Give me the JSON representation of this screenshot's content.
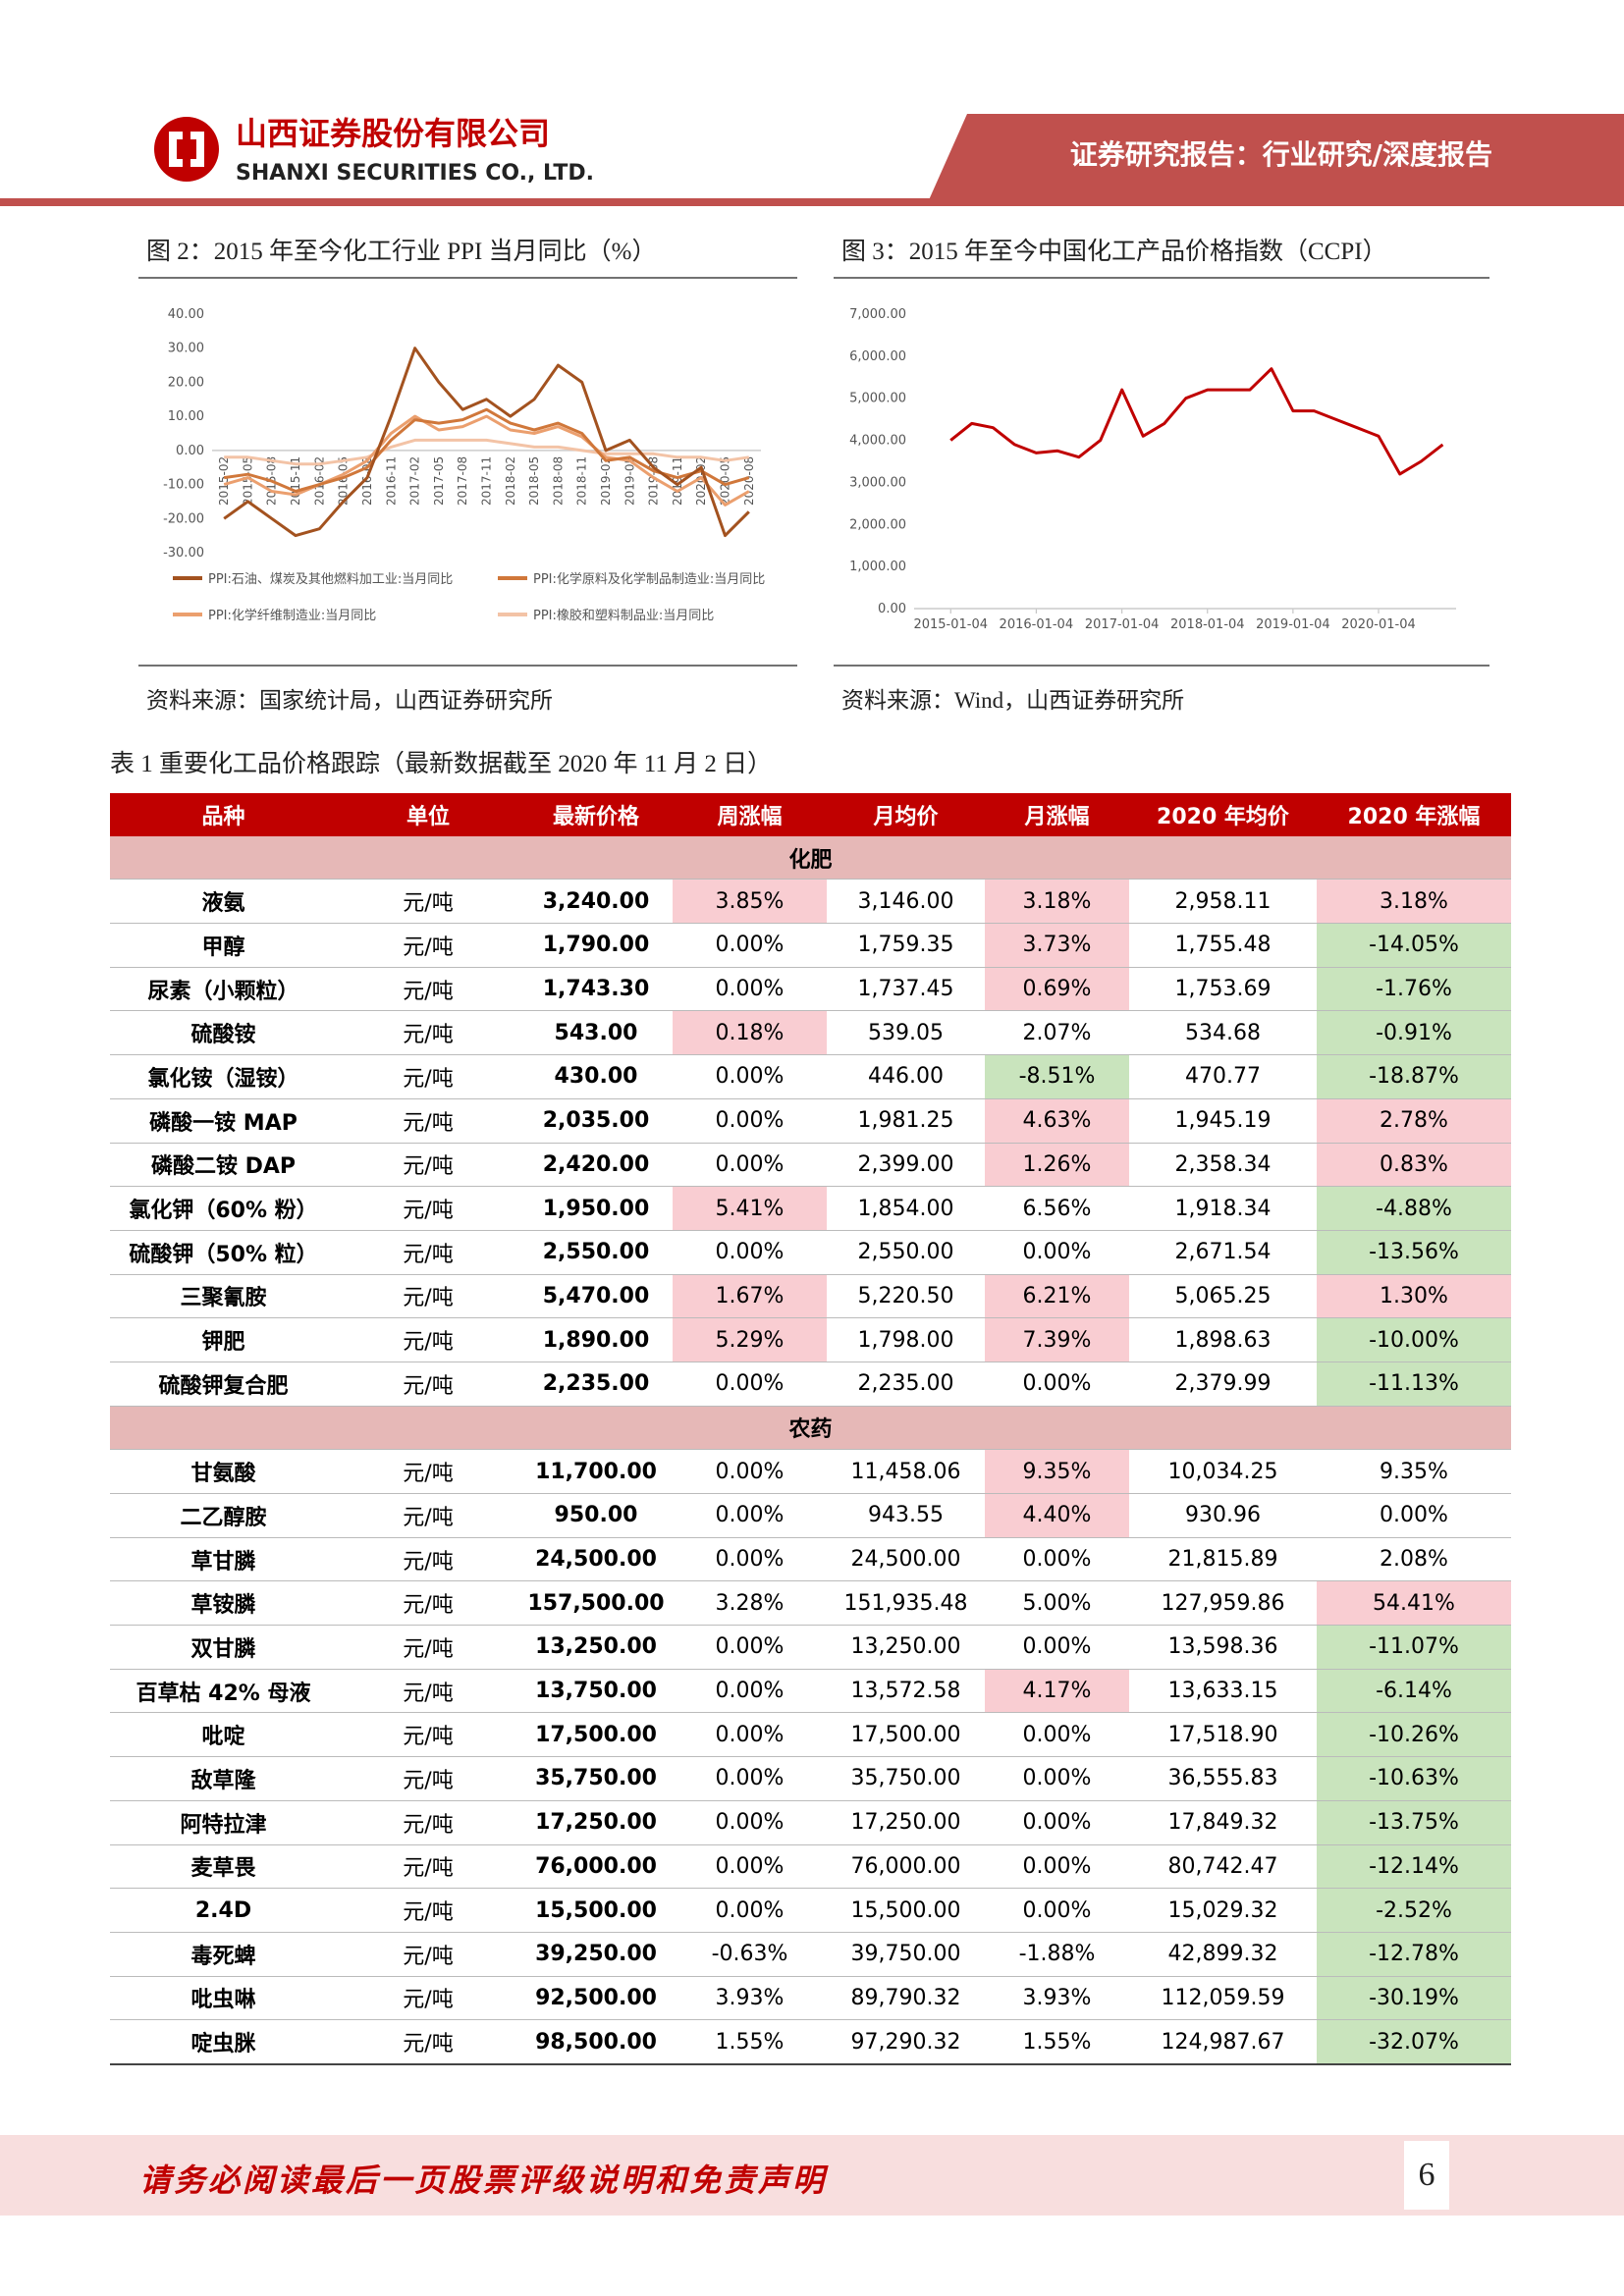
{
  "header": {
    "company_cn": "山西证券股份有限公司",
    "company_en": "SHANXI SECURITIES CO., LTD.",
    "report_type": "证券研究报告：行业研究/深度报告"
  },
  "chart_data": [
    {
      "type": "line",
      "title": "图 2：2015 年至今化工行业 PPI 当月同比（%）",
      "source": "资料来源：国家统计局，山西证券研究所",
      "categories": [
        "2015-02",
        "2015-05",
        "2015-08",
        "2015-11",
        "2016-02",
        "2016-05",
        "2016-08",
        "2016-11",
        "2017-02",
        "2017-05",
        "2017-08",
        "2017-11",
        "2018-02",
        "2018-05",
        "2018-08",
        "2018-11",
        "2019-02",
        "2019-05",
        "2019-08",
        "2019-11",
        "2020-02",
        "2020-05",
        "2020-08"
      ],
      "series": [
        {
          "name": "PPI:石油、煤炭及其他燃料加工业:当月同比",
          "color": "#a3521f",
          "values": [
            -20,
            -15,
            -20,
            -25,
            -23,
            -15,
            -8,
            10,
            30,
            20,
            12,
            15,
            10,
            15,
            25,
            20,
            0,
            3,
            -5,
            -10,
            -5,
            -25,
            -18
          ]
        },
        {
          "name": "PPI:化学原料及化学制品制造业:当月同比",
          "color": "#d0773a",
          "values": [
            -8,
            -7,
            -9,
            -12,
            -10,
            -8,
            -5,
            3,
            9,
            8,
            9,
            12,
            8,
            6,
            8,
            5,
            -3,
            -2,
            -6,
            -8,
            -6,
            -10,
            -8
          ]
        },
        {
          "name": "PPI:化学纤维制造业:当月同比",
          "color": "#eb9f6e",
          "values": [
            -10,
            -8,
            -12,
            -13,
            -10,
            -7,
            -3,
            5,
            10,
            6,
            7,
            10,
            6,
            5,
            7,
            4,
            -2,
            -3,
            -8,
            -12,
            -8,
            -16,
            -12
          ]
        },
        {
          "name": "PPI:橡胶和塑料制品业:当月同比",
          "color": "#f3c3a6",
          "values": [
            -2,
            -2,
            -3,
            -4,
            -4,
            -3,
            -2,
            1,
            3,
            3,
            3,
            3,
            2,
            1,
            1,
            0,
            -1,
            -1,
            -1,
            -2,
            -2,
            -3,
            -2
          ]
        }
      ],
      "ylim": [
        -30,
        40
      ],
      "yticks": [
        {
          "value": 40,
          "label": "40.00"
        },
        {
          "value": 30,
          "label": "30.00"
        },
        {
          "value": 20,
          "label": "20.00"
        },
        {
          "value": 10,
          "label": "10.00"
        },
        {
          "value": 0,
          "label": "0.00"
        },
        {
          "value": -10,
          "label": "-10.00"
        },
        {
          "value": -20,
          "label": "-20.00"
        },
        {
          "value": -30,
          "label": "-30.00"
        }
      ],
      "grid": false
    },
    {
      "type": "line",
      "title": "图 3：2015 年至今中国化工产品价格指数（CCPI）",
      "source": "资料来源：Wind，山西证券研究所",
      "x": [
        "2015-01-04",
        "2015-04-04",
        "2015-07-04",
        "2015-10-04",
        "2016-01-04",
        "2016-04-04",
        "2016-07-04",
        "2016-10-04",
        "2017-01-04",
        "2017-04-04",
        "2017-07-04",
        "2017-10-04",
        "2018-01-04",
        "2018-04-04",
        "2018-07-04",
        "2018-10-04",
        "2019-01-04",
        "2019-04-04",
        "2019-07-04",
        "2019-10-04",
        "2020-01-04",
        "2020-04-04",
        "2020-07-04",
        "2020-10-04"
      ],
      "values": [
        4000,
        4400,
        4300,
        3900,
        3700,
        3750,
        3600,
        4000,
        5200,
        4100,
        4400,
        5000,
        5200,
        5200,
        5200,
        5700,
        4700,
        4700,
        4500,
        4300,
        4100,
        3200,
        3500,
        3900
      ],
      "color": "#c00000",
      "xlim": [
        "2014-08-01",
        "2020-11-30"
      ],
      "xticks": [
        "2015-01-04",
        "2016-01-04",
        "2017-01-04",
        "2018-01-04",
        "2019-01-04",
        "2020-01-04"
      ],
      "ylim": [
        0,
        7000
      ],
      "yticks": [
        {
          "value": 0,
          "label": "0.00"
        },
        {
          "value": 1000,
          "label": "1,000.00"
        },
        {
          "value": 2000,
          "label": "2,000.00"
        },
        {
          "value": 3000,
          "label": "3,000.00"
        },
        {
          "value": 4000,
          "label": "4,000.00"
        },
        {
          "value": 5000,
          "label": "5,000.00"
        },
        {
          "value": 6000,
          "label": "6,000.00"
        },
        {
          "value": 7000,
          "label": "7,000.00"
        }
      ],
      "grid": false
    }
  ],
  "table": {
    "caption": "表 1  重要化工品价格跟踪（最新数据截至 2020 年 11 月 2 日）",
    "header": [
      "品种",
      "单位",
      "最新价格",
      "周涨幅",
      "月均价",
      "月涨幅",
      "2020 年均价",
      "2020 年涨幅"
    ],
    "fill_colors": {
      "up": "#f9cdd2",
      "down": "#c9e4bd"
    },
    "sections": [
      {
        "name": "化肥",
        "rows": [
          {
            "cells": [
              "液氨",
              "元/吨",
              "3,240.00",
              "3.85%",
              "3,146.00",
              "3.18%",
              "2,958.11",
              "3.18%"
            ],
            "up": [
              3,
              5,
              7
            ],
            "down": []
          },
          {
            "cells": [
              "甲醇",
              "元/吨",
              "1,790.00",
              "0.00%",
              "1,759.35",
              "3.73%",
              "1,755.48",
              "-14.05%"
            ],
            "up": [
              5
            ],
            "down": [
              7
            ]
          },
          {
            "cells": [
              "尿素（小颗粒）",
              "元/吨",
              "1,743.30",
              "0.00%",
              "1,737.45",
              "0.69%",
              "1,753.69",
              "-1.76%"
            ],
            "up": [
              5
            ],
            "down": [
              7
            ]
          },
          {
            "cells": [
              "硫酸铵",
              "元/吨",
              "543.00",
              "0.18%",
              "539.05",
              "2.07%",
              "534.68",
              "-0.91%"
            ],
            "up": [
              3
            ],
            "down": [
              7
            ]
          },
          {
            "cells": [
              "氯化铵（湿铵）",
              "元/吨",
              "430.00",
              "0.00%",
              "446.00",
              "-8.51%",
              "470.77",
              "-18.87%"
            ],
            "up": [],
            "down": [
              5,
              7
            ]
          },
          {
            "cells": [
              "磷酸一铵 MAP",
              "元/吨",
              "2,035.00",
              "0.00%",
              "1,981.25",
              "4.63%",
              "1,945.19",
              "2.78%"
            ],
            "up": [
              5,
              7
            ],
            "down": []
          },
          {
            "cells": [
              "磷酸二铵 DAP",
              "元/吨",
              "2,420.00",
              "0.00%",
              "2,399.00",
              "1.26%",
              "2,358.34",
              "0.83%"
            ],
            "up": [
              5,
              7
            ],
            "down": []
          },
          {
            "cells": [
              "氯化钾（60% 粉）",
              "元/吨",
              "1,950.00",
              "5.41%",
              "1,854.00",
              "6.56%",
              "1,918.34",
              "-4.88%"
            ],
            "up": [
              3
            ],
            "down": [
              7
            ]
          },
          {
            "cells": [
              "硫酸钾（50% 粒）",
              "元/吨",
              "2,550.00",
              "0.00%",
              "2,550.00",
              "0.00%",
              "2,671.54",
              "-13.56%"
            ],
            "up": [],
            "down": [
              7
            ]
          },
          {
            "cells": [
              "三聚氰胺",
              "元/吨",
              "5,470.00",
              "1.67%",
              "5,220.50",
              "6.21%",
              "5,065.25",
              "1.30%"
            ],
            "up": [
              3,
              5,
              7
            ],
            "down": []
          },
          {
            "cells": [
              "钾肥",
              "元/吨",
              "1,890.00",
              "5.29%",
              "1,798.00",
              "7.39%",
              "1,898.63",
              "-10.00%"
            ],
            "up": [
              3,
              5
            ],
            "down": [
              7
            ]
          },
          {
            "cells": [
              "硫酸钾复合肥",
              "元/吨",
              "2,235.00",
              "0.00%",
              "2,235.00",
              "0.00%",
              "2,379.99",
              "-11.13%"
            ],
            "up": [],
            "down": [
              7
            ]
          }
        ]
      },
      {
        "name": "农药",
        "rows": [
          {
            "cells": [
              "甘氨酸",
              "元/吨",
              "11,700.00",
              "0.00%",
              "11,458.06",
              "9.35%",
              "10,034.25",
              "9.35%"
            ],
            "up": [
              5
            ],
            "down": []
          },
          {
            "cells": [
              "二乙醇胺",
              "元/吨",
              "950.00",
              "0.00%",
              "943.55",
              "4.40%",
              "930.96",
              "0.00%"
            ],
            "up": [
              5
            ],
            "down": []
          },
          {
            "cells": [
              "草甘膦",
              "元/吨",
              "24,500.00",
              "0.00%",
              "24,500.00",
              "0.00%",
              "21,815.89",
              "2.08%"
            ],
            "up": [],
            "down": []
          },
          {
            "cells": [
              "草铵膦",
              "元/吨",
              "157,500.00",
              "3.28%",
              "151,935.48",
              "5.00%",
              "127,959.86",
              "54.41%"
            ],
            "up": [
              7
            ],
            "down": []
          },
          {
            "cells": [
              "双甘膦",
              "元/吨",
              "13,250.00",
              "0.00%",
              "13,250.00",
              "0.00%",
              "13,598.36",
              "-11.07%"
            ],
            "up": [],
            "down": [
              7
            ]
          },
          {
            "cells": [
              "百草枯 42% 母液",
              "元/吨",
              "13,750.00",
              "0.00%",
              "13,572.58",
              "4.17%",
              "13,633.15",
              "-6.14%"
            ],
            "up": [
              5
            ],
            "down": [
              7
            ]
          },
          {
            "cells": [
              "吡啶",
              "元/吨",
              "17,500.00",
              "0.00%",
              "17,500.00",
              "0.00%",
              "17,518.90",
              "-10.26%"
            ],
            "up": [],
            "down": [
              7
            ]
          },
          {
            "cells": [
              "敌草隆",
              "元/吨",
              "35,750.00",
              "0.00%",
              "35,750.00",
              "0.00%",
              "36,555.83",
              "-10.63%"
            ],
            "up": [],
            "down": [
              7
            ]
          },
          {
            "cells": [
              "阿特拉津",
              "元/吨",
              "17,250.00",
              "0.00%",
              "17,250.00",
              "0.00%",
              "17,849.32",
              "-13.75%"
            ],
            "up": [],
            "down": [
              7
            ]
          },
          {
            "cells": [
              "麦草畏",
              "元/吨",
              "76,000.00",
              "0.00%",
              "76,000.00",
              "0.00%",
              "80,742.47",
              "-12.14%"
            ],
            "up": [],
            "down": [
              7
            ]
          },
          {
            "cells": [
              "2.4D",
              "元/吨",
              "15,500.00",
              "0.00%",
              "15,500.00",
              "0.00%",
              "15,029.32",
              "-2.52%"
            ],
            "up": [],
            "down": [
              7
            ]
          },
          {
            "cells": [
              "毒死蜱",
              "元/吨",
              "39,250.00",
              "-0.63%",
              "39,750.00",
              "-1.88%",
              "42,899.32",
              "-12.78%"
            ],
            "up": [],
            "down": [
              7
            ]
          },
          {
            "cells": [
              "吡虫啉",
              "元/吨",
              "92,500.00",
              "3.93%",
              "89,790.32",
              "3.93%",
              "112,059.59",
              "-30.19%"
            ],
            "up": [],
            "down": [
              7
            ]
          },
          {
            "cells": [
              "啶虫脒",
              "元/吨",
              "98,500.00",
              "1.55%",
              "97,290.32",
              "1.55%",
              "124,987.67",
              "-32.07%"
            ],
            "up": [],
            "down": [
              7
            ]
          }
        ]
      }
    ]
  },
  "footer": {
    "disclaimer": "请务必阅读最后一页股票评级说明和免责声明",
    "page": "6"
  }
}
